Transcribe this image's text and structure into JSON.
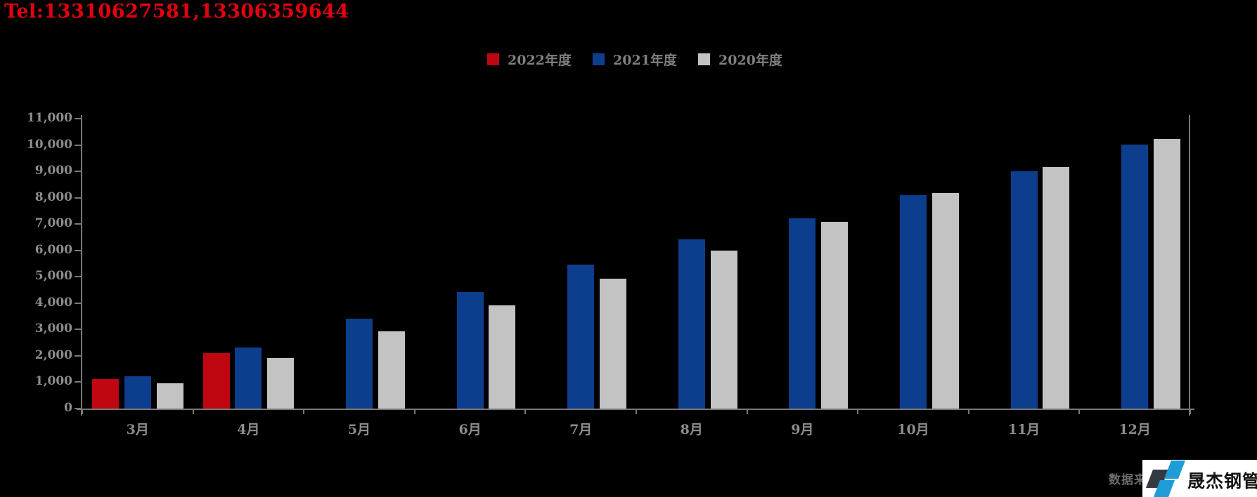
{
  "page": {
    "background": "#000000"
  },
  "header": {
    "tel": "Tel:13310627581,13306359644",
    "tel_color": "#e50010"
  },
  "legend": [
    {
      "label": "2022年度",
      "color": "#bf0711"
    },
    {
      "label": "2021年度",
      "color": "#0d3e8e"
    },
    {
      "label": "2020年度",
      "color": "#c3c3c4"
    }
  ],
  "chart_data": {
    "type": "bar",
    "categories": [
      "3月",
      "4月",
      "5月",
      "6月",
      "7月",
      "8月",
      "9月",
      "10月",
      "11月",
      "12月"
    ],
    "series": [
      {
        "name": "2022年度",
        "color": "#bf0711",
        "values": [
          1120,
          2100,
          null,
          null,
          null,
          null,
          null,
          null,
          null,
          null
        ]
      },
      {
        "name": "2021年度",
        "color": "#0d3e8e",
        "values": [
          1220,
          2310,
          3420,
          4430,
          5460,
          6420,
          7210,
          8090,
          9010,
          10010
        ]
      },
      {
        "name": "2020年度",
        "color": "#c3c3c4",
        "values": [
          960,
          1910,
          2930,
          3920,
          4930,
          5990,
          7090,
          8190,
          9170,
          10220
        ]
      }
    ],
    "title": "",
    "xlabel": "",
    "ylabel": "",
    "ylim": [
      0,
      11000
    ],
    "ytick_step": 1000,
    "ytick_labels": [
      "0",
      "1,000",
      "2,000",
      "3,000",
      "4,000",
      "5,000",
      "6,000",
      "7,000",
      "8,000",
      "9,000",
      "10,000",
      "11,000"
    ],
    "grid": false,
    "legend_position": "top",
    "background": "#000000",
    "axis_color": "#787878",
    "tick_label_color": "#8d8d8d"
  },
  "footer": {
    "source_note": "数据来",
    "logo_text": "晟杰钢管",
    "logo_colors": {
      "background": "#ffffff",
      "dark_piece": "#333a42",
      "blue_piece": "#1e9cd7",
      "text": "#141414"
    }
  }
}
